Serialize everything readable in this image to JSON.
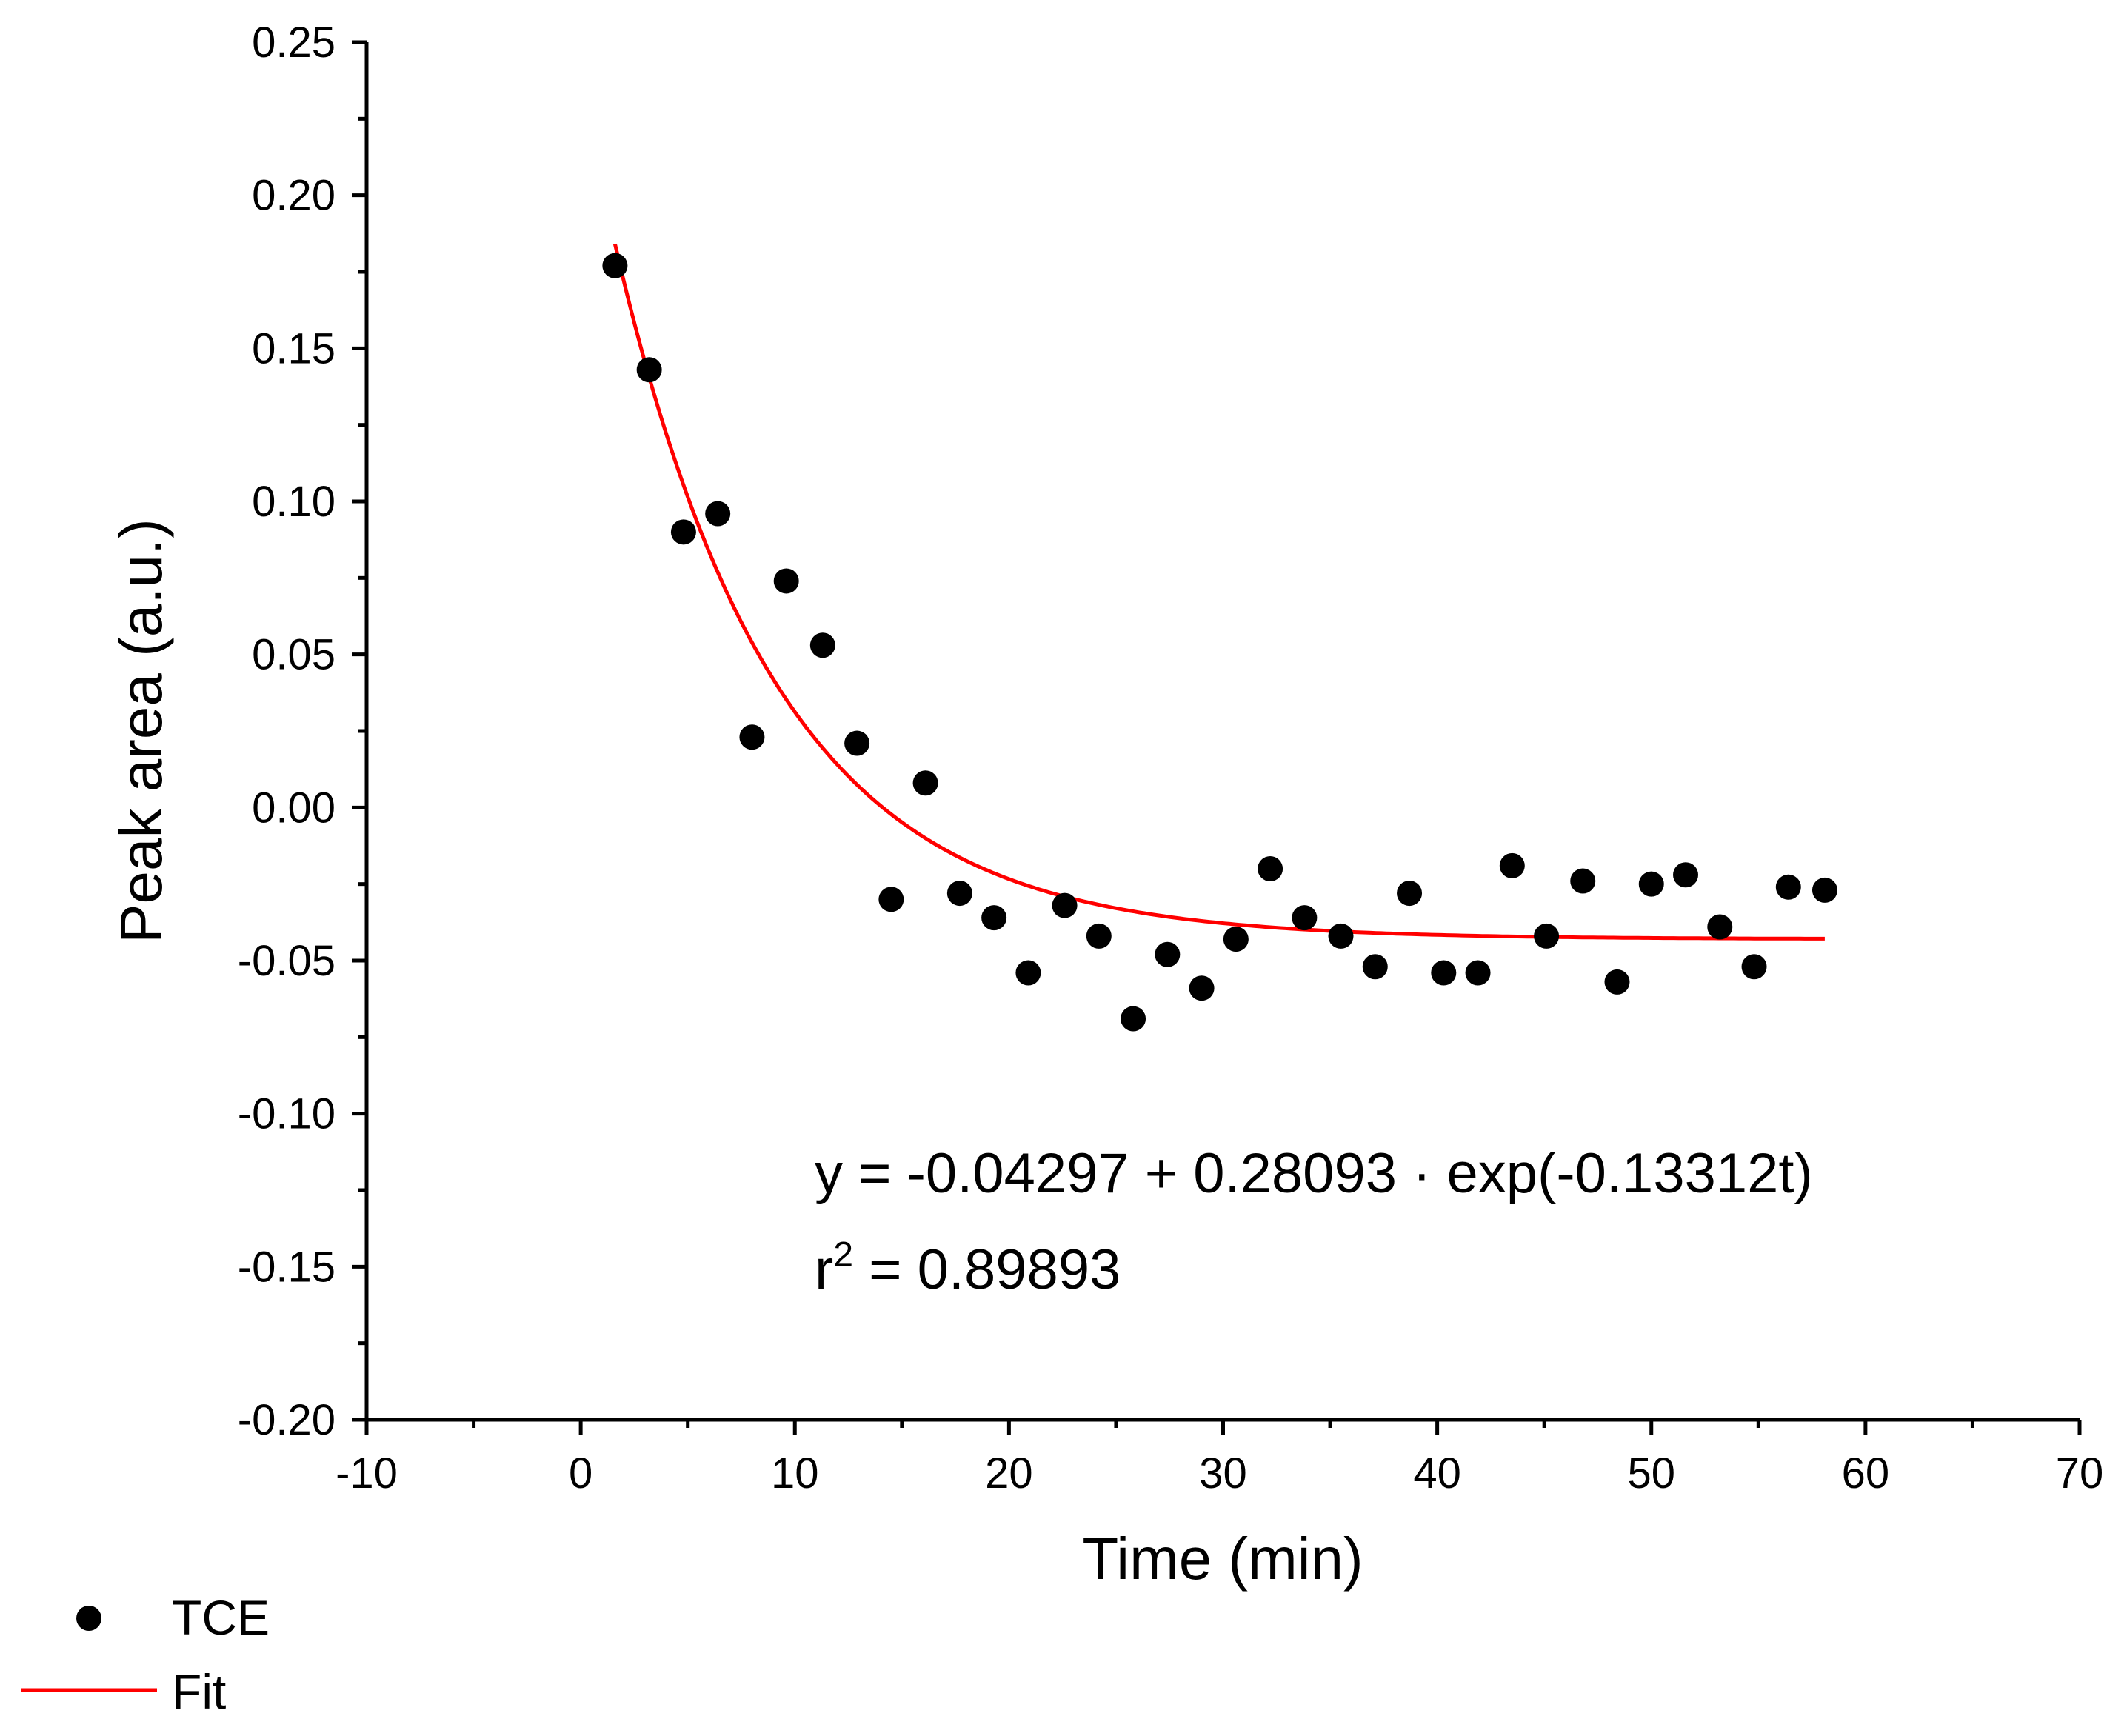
{
  "chart_data": {
    "type": "scatter",
    "title": "",
    "xlabel": "Time (min)",
    "ylabel": "Peak area (a.u.)",
    "xlim": [
      -10,
      70
    ],
    "ylim": [
      -0.2,
      0.25
    ],
    "xticks": [
      -10,
      0,
      10,
      20,
      30,
      40,
      50,
      60,
      70
    ],
    "xtick_labels": [
      "-10",
      "0",
      "10",
      "20",
      "30",
      "40",
      "50",
      "60",
      "70"
    ],
    "yticks": [
      -0.2,
      -0.15,
      -0.1,
      -0.05,
      0.0,
      0.05,
      0.1,
      0.15,
      0.2,
      0.25
    ],
    "ytick_labels": [
      "-0.20",
      "-0.15",
      "-0.10",
      "-0.05",
      "0.00",
      "0.05",
      "0.10",
      "0.15",
      "0.20",
      "0.25"
    ],
    "grid": false,
    "series": [
      {
        "name": "TCE",
        "kind": "scatter",
        "color": "#000000",
        "x": [
          1.6,
          3.2,
          4.8,
          6.4,
          8.0,
          9.6,
          11.3,
          12.9,
          14.5,
          16.1,
          17.7,
          19.3,
          20.9,
          22.6,
          24.2,
          25.8,
          27.4,
          29.0,
          30.6,
          32.2,
          33.8,
          35.5,
          37.1,
          38.7,
          40.3,
          41.9,
          43.5,
          45.1,
          46.8,
          48.4,
          50.0,
          51.6,
          53.2,
          54.8,
          56.4,
          58.1
        ],
        "y": [
          0.177,
          0.143,
          0.09,
          0.096,
          0.023,
          0.074,
          0.053,
          0.021,
          -0.03,
          0.008,
          -0.028,
          -0.036,
          -0.054,
          -0.032,
          -0.042,
          -0.069,
          -0.048,
          -0.059,
          -0.043,
          -0.02,
          -0.036,
          -0.042,
          -0.052,
          -0.028,
          -0.054,
          -0.054,
          -0.019,
          -0.042,
          -0.024,
          -0.057,
          -0.025,
          -0.022,
          -0.039,
          -0.052,
          -0.026,
          -0.027
        ]
      },
      {
        "name": "Fit",
        "kind": "line",
        "color": "#ff0000",
        "function": "y = a + b*exp(c*t)",
        "params": {
          "a": -0.04297,
          "b": 0.28093,
          "c": -0.13312
        },
        "x_range": [
          1.6,
          58.1
        ]
      }
    ],
    "annotations": [
      {
        "text": "y = -0.04297 + 0.28093 · exp(-0.13312t)"
      },
      {
        "text_base": "r",
        "superscript": "2",
        "text_rest": " = 0.89893"
      }
    ],
    "legend": {
      "placement": "bottom-left",
      "entries": [
        {
          "label": "TCE",
          "marker": "circle",
          "color": "#000000"
        },
        {
          "label": "Fit",
          "marker": "line",
          "color": "#ff0000"
        }
      ]
    }
  }
}
